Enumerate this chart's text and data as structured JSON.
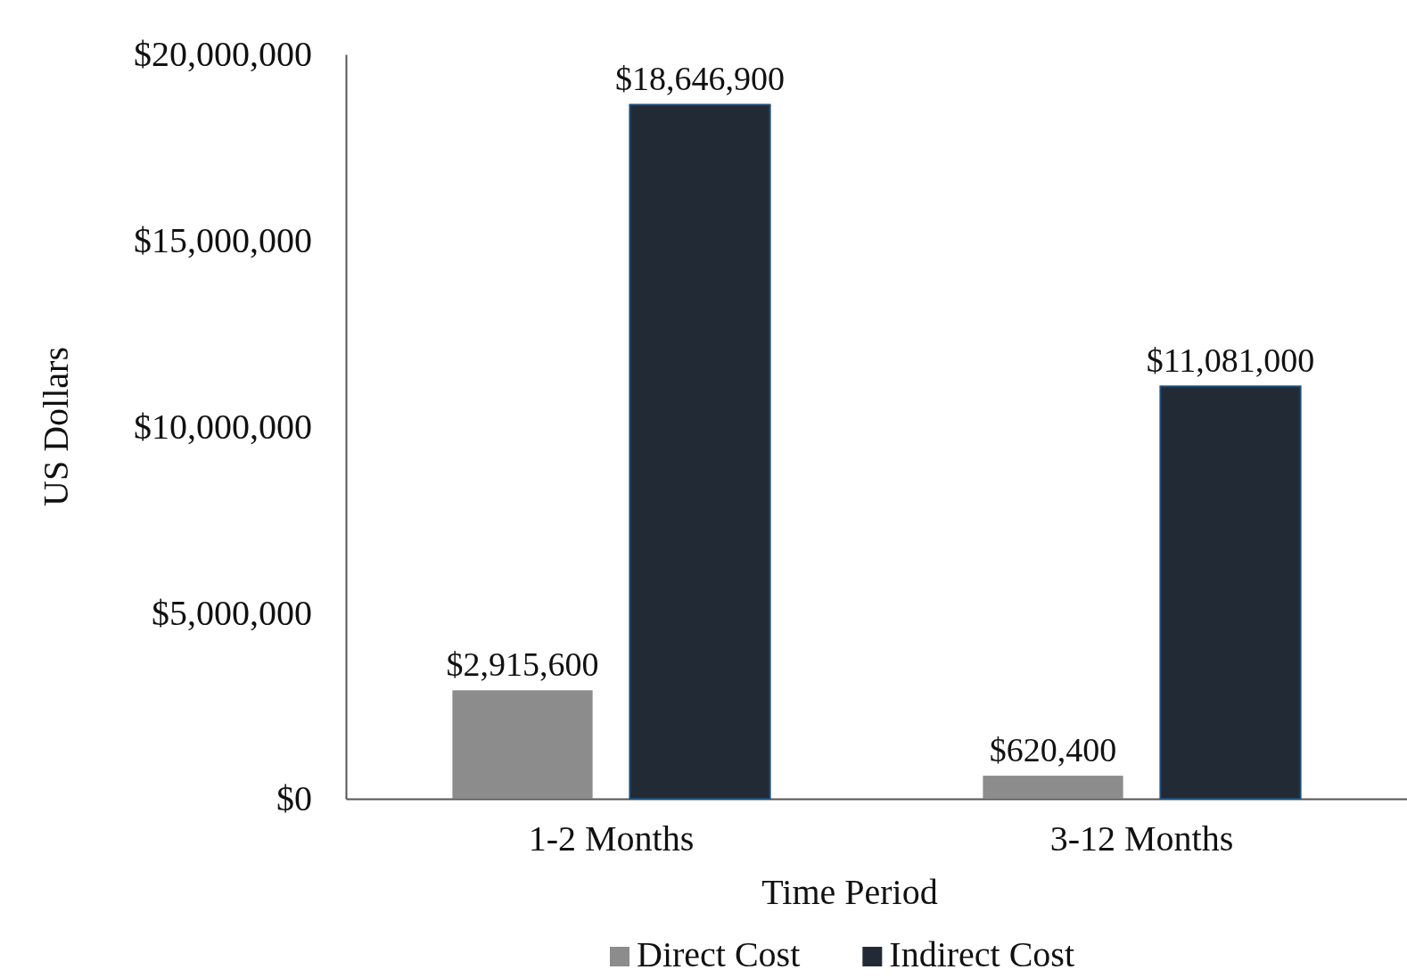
{
  "chart_data": {
    "type": "bar",
    "xlabel": "Time Period",
    "ylabel": "US Dollars",
    "categories": [
      "1-2 Months",
      "3-12 Months"
    ],
    "series": [
      {
        "name": "Direct Cost",
        "color": "#8c8c8c",
        "values": [
          2915600,
          620400
        ],
        "value_labels": [
          "$2,915,600",
          "$620,400"
        ]
      },
      {
        "name": "Indirect Cost",
        "color": "#222a35",
        "values": [
          18646900,
          11081000
        ],
        "value_labels": [
          "$18,646,900",
          "$11,081,000"
        ]
      }
    ],
    "ylim": [
      0,
      20000000
    ],
    "yticks": [
      {
        "value": 0,
        "label": "$0"
      },
      {
        "value": 5000000,
        "label": "$5,000,000"
      },
      {
        "value": 10000000,
        "label": "$10,000,000"
      },
      {
        "value": 15000000,
        "label": "$15,000,000"
      },
      {
        "value": 20000000,
        "label": "$20,000,000"
      }
    ],
    "grid": false,
    "legend": "bottom"
  }
}
